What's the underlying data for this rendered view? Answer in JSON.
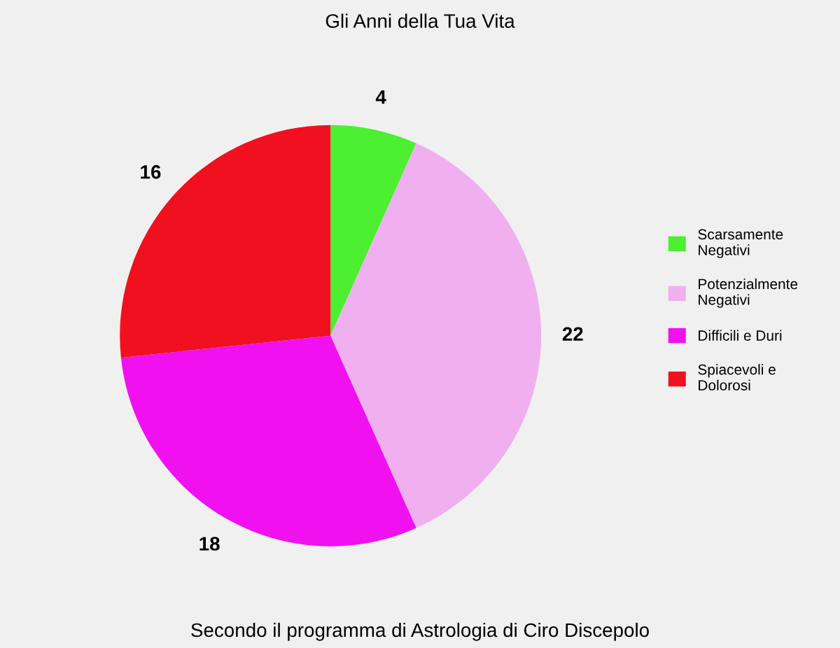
{
  "chart_data": {
    "type": "pie",
    "title": "Gli Anni della Tua Vita",
    "categories": [
      "Scarsamente\nNegativi",
      "Potenzialmente\nNegativi",
      "Difficili e Duri",
      "Spiacevoli e\nDolorosi"
    ],
    "values": [
      4,
      22,
      18,
      16
    ],
    "colors": [
      "#4cf030",
      "#f0b0f0",
      "#f010f0",
      "#f01020"
    ],
    "data_labels": true,
    "legend": "right",
    "annotations": [
      "Secondo il programma di Astrologia di Ciro Discepolo"
    ]
  }
}
